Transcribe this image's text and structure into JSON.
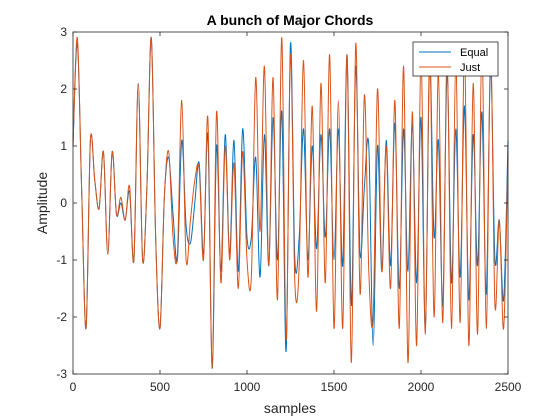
{
  "chart_data": {
    "type": "line",
    "title": "A bunch of Major Chords",
    "xlabel": "samples",
    "ylabel": "Amplitude",
    "xlim": [
      0,
      2500
    ],
    "ylim": [
      -3,
      3
    ],
    "xticks": [
      0,
      500,
      1000,
      1500,
      2000,
      2500
    ],
    "yticks": [
      -3,
      -2,
      -1,
      0,
      1,
      2,
      3
    ],
    "grid": false,
    "legend_position": "top-right",
    "x": [
      0,
      25,
      50,
      75,
      100,
      125,
      150,
      175,
      200,
      225,
      250,
      275,
      300,
      325,
      350,
      375,
      400,
      425,
      450,
      475,
      500,
      525,
      550,
      575,
      600,
      625,
      650,
      675,
      700,
      725,
      750,
      775,
      800,
      825,
      850,
      875,
      900,
      925,
      950,
      975,
      1000,
      1025,
      1050,
      1075,
      1100,
      1125,
      1150,
      1175,
      1200,
      1225,
      1250,
      1275,
      1300,
      1325,
      1350,
      1375,
      1400,
      1425,
      1450,
      1475,
      1500,
      1525,
      1550,
      1575,
      1600,
      1625,
      1650,
      1675,
      1700,
      1725,
      1750,
      1775,
      1800,
      1825,
      1850,
      1875,
      1900,
      1925,
      1950,
      1975,
      2000,
      2025,
      2050,
      2075,
      2100,
      2125,
      2150,
      2175,
      2200,
      2225,
      2250,
      2275,
      2300,
      2325,
      2350,
      2375,
      2400,
      2425,
      2450,
      2475,
      2500
    ],
    "series": [
      {
        "name": "Equal",
        "color": "#0072BD",
        "values": [
          1.0,
          2.8,
          0.2,
          -2.2,
          1.1,
          0.4,
          -0.1,
          0.9,
          -0.9,
          0.9,
          -0.2,
          0.0,
          -0.3,
          0.2,
          -1.0,
          2.1,
          -1.0,
          0.3,
          2.9,
          -0.6,
          -2.2,
          0.1,
          0.8,
          -0.2,
          -1.0,
          1.1,
          -0.4,
          -0.7,
          0.0,
          0.7,
          -0.9,
          1.2,
          -2.9,
          1.0,
          -1.2,
          1.2,
          -0.9,
          1.1,
          -1.2,
          1.3,
          -0.6,
          -0.6,
          0.8,
          -1.3,
          1.2,
          -1.1,
          1.5,
          -1.0,
          1.6,
          -2.6,
          2.8,
          -1.0,
          -0.6,
          1.3,
          -1.0,
          1.0,
          -0.8,
          1.2,
          -0.6,
          1.3,
          -1.0,
          1.3,
          -1.1,
          2.6,
          -1.8,
          2.4,
          -0.9,
          0.3,
          1.0,
          -2.5,
          1.0,
          -1.2,
          1.1,
          -1.1,
          1.4,
          -1.5,
          1.3,
          -1.2,
          1.4,
          -1.4,
          1.5,
          -2.2,
          2.5,
          -0.6,
          1.1,
          -1.8,
          2.3,
          -1.4,
          1.3,
          -1.3,
          1.7,
          -1.7,
          1.2,
          -1.1,
          1.6,
          -1.6,
          2.4,
          -1.0,
          -0.3,
          -1.7,
          1.1
        ]
      },
      {
        "name": "Just",
        "color": "#D95319",
        "values": [
          1.0,
          2.9,
          0.2,
          -2.2,
          1.1,
          0.4,
          -0.1,
          0.9,
          -0.9,
          0.9,
          -0.2,
          0.1,
          -0.3,
          0.3,
          -1.0,
          2.1,
          -1.0,
          0.3,
          2.9,
          -0.6,
          -2.2,
          0.1,
          0.9,
          -0.6,
          -0.9,
          1.8,
          -1.0,
          -0.3,
          0.4,
          0.6,
          -1.0,
          1.5,
          -2.9,
          1.6,
          -1.4,
          1.0,
          -1.0,
          0.7,
          -1.5,
          0.9,
          -1.0,
          -1.3,
          2.2,
          -0.5,
          2.4,
          -1.1,
          2.2,
          -1.7,
          2.9,
          -2.4,
          2.6,
          -1.4,
          -1.1,
          2.5,
          -1.3,
          1.7,
          -1.9,
          2.1,
          -1.4,
          2.6,
          -2.2,
          1.8,
          -2.2,
          2.6,
          -2.8,
          2.8,
          -1.6,
          1.9,
          -1.2,
          -2.0,
          2.0,
          -1.2,
          1.0,
          -1.5,
          1.8,
          -2.2,
          2.4,
          -2.8,
          1.6,
          -2.5,
          2.6,
          -2.3,
          2.7,
          -2.0,
          2.3,
          -2.1,
          2.6,
          -2.2,
          2.5,
          -2.1,
          2.7,
          -2.5,
          2.1,
          -2.3,
          2.8,
          -2.2,
          2.7,
          -1.8,
          -0.3,
          -2.2,
          0.9
        ]
      }
    ]
  }
}
